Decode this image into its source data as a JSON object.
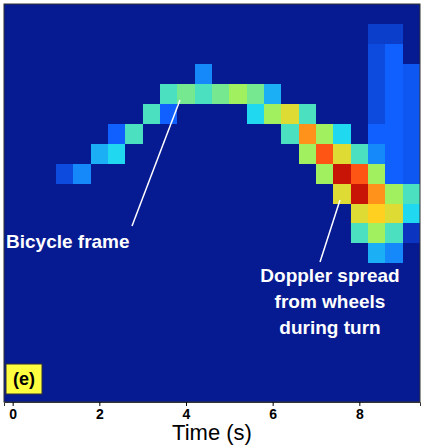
{
  "chart_data": {
    "type": "heatmap",
    "x_label": "Time (s)",
    "xlim": [
      -0.2,
      9.4
    ],
    "xticks": [
      0,
      2,
      4,
      6,
      8
    ],
    "ylim": [
      0,
      20
    ],
    "tick_labels": "x",
    "x_edges": [
      -0.2,
      0.2,
      0.6,
      1.0,
      1.4,
      1.8,
      2.2,
      2.6,
      3.0,
      3.4,
      3.8,
      4.2,
      4.6,
      5.0,
      5.4,
      5.8,
      6.2,
      6.6,
      7.0,
      7.4,
      7.8,
      8.2,
      8.6,
      9.0,
      9.4
    ],
    "y_edges": [
      0,
      1,
      2,
      3,
      4,
      5,
      6,
      7,
      8,
      9,
      10,
      11,
      12,
      13,
      14,
      15,
      16,
      17,
      18,
      19,
      20
    ],
    "zlim": [
      0,
      1
    ],
    "z": [
      [
        0.12,
        0.12,
        0.12,
        0.12,
        0.12,
        0.12,
        0.12,
        0.12,
        0.12,
        0.12,
        0.12,
        0.12,
        0.12,
        0.12,
        0.12,
        0.12,
        0.12,
        0.12,
        0.12,
        0.12,
        0.12,
        0.12,
        0.12,
        0.12
      ],
      [
        0.12,
        0.12,
        0.12,
        0.12,
        0.12,
        0.12,
        0.12,
        0.12,
        0.12,
        0.12,
        0.12,
        0.12,
        0.12,
        0.12,
        0.12,
        0.12,
        0.12,
        0.12,
        0.12,
        0.12,
        0.12,
        0.12,
        0.12,
        0.12
      ],
      [
        0.12,
        0.12,
        0.12,
        0.12,
        0.12,
        0.12,
        0.12,
        0.12,
        0.12,
        0.12,
        0.12,
        0.12,
        0.12,
        0.12,
        0.12,
        0.12,
        0.12,
        0.12,
        0.12,
        0.12,
        0.12,
        0.12,
        0.12,
        0.12
      ],
      [
        0.12,
        0.12,
        0.12,
        0.12,
        0.12,
        0.12,
        0.12,
        0.12,
        0.12,
        0.12,
        0.12,
        0.12,
        0.12,
        0.12,
        0.12,
        0.12,
        0.12,
        0.12,
        0.12,
        0.12,
        0.12,
        0.12,
        0.12,
        0.12
      ],
      [
        0.12,
        0.12,
        0.12,
        0.12,
        0.12,
        0.12,
        0.12,
        0.12,
        0.12,
        0.12,
        0.12,
        0.12,
        0.12,
        0.12,
        0.12,
        0.12,
        0.12,
        0.12,
        0.12,
        0.12,
        0.12,
        0.12,
        0.12,
        0.12
      ],
      [
        0.12,
        0.12,
        0.12,
        0.12,
        0.12,
        0.12,
        0.12,
        0.12,
        0.12,
        0.12,
        0.12,
        0.12,
        0.12,
        0.12,
        0.12,
        0.12,
        0.12,
        0.12,
        0.12,
        0.12,
        0.12,
        0.12,
        0.12,
        0.12
      ],
      [
        0.12,
        0.12,
        0.12,
        0.12,
        0.12,
        0.12,
        0.12,
        0.12,
        0.12,
        0.12,
        0.12,
        0.12,
        0.12,
        0.12,
        0.12,
        0.12,
        0.12,
        0.12,
        0.12,
        0.12,
        0.12,
        0.12,
        0.12,
        0.12
      ],
      [
        0.12,
        0.12,
        0.12,
        0.12,
        0.12,
        0.12,
        0.12,
        0.12,
        0.12,
        0.12,
        0.12,
        0.12,
        0.12,
        0.12,
        0.12,
        0.12,
        0.12,
        0.12,
        0.12,
        0.12,
        0.12,
        0.4,
        0.35,
        0.12
      ],
      [
        0.12,
        0.12,
        0.12,
        0.12,
        0.12,
        0.12,
        0.12,
        0.12,
        0.12,
        0.12,
        0.12,
        0.12,
        0.12,
        0.12,
        0.12,
        0.12,
        0.12,
        0.12,
        0.12,
        0.12,
        0.5,
        0.6,
        0.5,
        0.2
      ],
      [
        0.12,
        0.12,
        0.12,
        0.12,
        0.12,
        0.12,
        0.12,
        0.12,
        0.12,
        0.12,
        0.12,
        0.12,
        0.12,
        0.12,
        0.12,
        0.12,
        0.12,
        0.12,
        0.12,
        0.12,
        0.7,
        0.75,
        0.7,
        0.45
      ],
      [
        0.12,
        0.12,
        0.12,
        0.12,
        0.12,
        0.12,
        0.12,
        0.12,
        0.12,
        0.12,
        0.12,
        0.12,
        0.12,
        0.12,
        0.12,
        0.12,
        0.12,
        0.12,
        0.12,
        0.7,
        0.95,
        0.8,
        0.6,
        0.5
      ],
      [
        0.12,
        0.12,
        0.12,
        0.25,
        0.35,
        0.12,
        0.12,
        0.12,
        0.12,
        0.12,
        0.12,
        0.12,
        0.12,
        0.12,
        0.12,
        0.12,
        0.12,
        0.12,
        0.6,
        0.95,
        0.85,
        0.6,
        0.3,
        0.28
      ],
      [
        0.12,
        0.12,
        0.12,
        0.12,
        0.12,
        0.4,
        0.45,
        0.12,
        0.12,
        0.12,
        0.12,
        0.12,
        0.12,
        0.12,
        0.12,
        0.12,
        0.12,
        0.6,
        0.85,
        0.7,
        0.5,
        0.35,
        0.3,
        0.28
      ],
      [
        0.12,
        0.12,
        0.12,
        0.12,
        0.12,
        0.12,
        0.3,
        0.5,
        0.12,
        0.12,
        0.12,
        0.12,
        0.12,
        0.12,
        0.12,
        0.12,
        0.5,
        0.8,
        0.6,
        0.45,
        0.12,
        0.3,
        0.3,
        0.28
      ],
      [
        0.12,
        0.12,
        0.12,
        0.12,
        0.12,
        0.12,
        0.12,
        0.12,
        0.5,
        0.3,
        0.12,
        0.12,
        0.12,
        0.12,
        0.45,
        0.6,
        0.7,
        0.5,
        0.12,
        0.12,
        0.12,
        0.25,
        0.3,
        0.28
      ],
      [
        0.12,
        0.12,
        0.12,
        0.12,
        0.12,
        0.12,
        0.12,
        0.12,
        0.12,
        0.5,
        0.55,
        0.5,
        0.55,
        0.6,
        0.55,
        0.4,
        0.12,
        0.12,
        0.12,
        0.12,
        0.12,
        0.25,
        0.3,
        0.28
      ],
      [
        0.12,
        0.12,
        0.12,
        0.12,
        0.12,
        0.12,
        0.12,
        0.12,
        0.12,
        0.12,
        0.12,
        0.35,
        0.12,
        0.12,
        0.12,
        0.12,
        0.12,
        0.12,
        0.12,
        0.12,
        0.12,
        0.25,
        0.3,
        0.28
      ],
      [
        0.12,
        0.12,
        0.12,
        0.12,
        0.12,
        0.12,
        0.12,
        0.12,
        0.12,
        0.12,
        0.12,
        0.12,
        0.12,
        0.12,
        0.12,
        0.12,
        0.12,
        0.12,
        0.12,
        0.12,
        0.12,
        0.25,
        0.3,
        0.12
      ],
      [
        0.12,
        0.12,
        0.12,
        0.12,
        0.12,
        0.12,
        0.12,
        0.12,
        0.12,
        0.12,
        0.12,
        0.12,
        0.12,
        0.12,
        0.12,
        0.12,
        0.12,
        0.12,
        0.12,
        0.12,
        0.12,
        0.22,
        0.22,
        0.12
      ],
      [
        0.12,
        0.12,
        0.12,
        0.12,
        0.12,
        0.12,
        0.12,
        0.12,
        0.12,
        0.12,
        0.12,
        0.12,
        0.12,
        0.12,
        0.12,
        0.12,
        0.12,
        0.12,
        0.12,
        0.12,
        0.12,
        0.12,
        0.12,
        0.12
      ]
    ],
    "annotations": [
      "Bicycle frame",
      "Doppler spread from wheels during turn"
    ],
    "panel_label": "(e)"
  }
}
